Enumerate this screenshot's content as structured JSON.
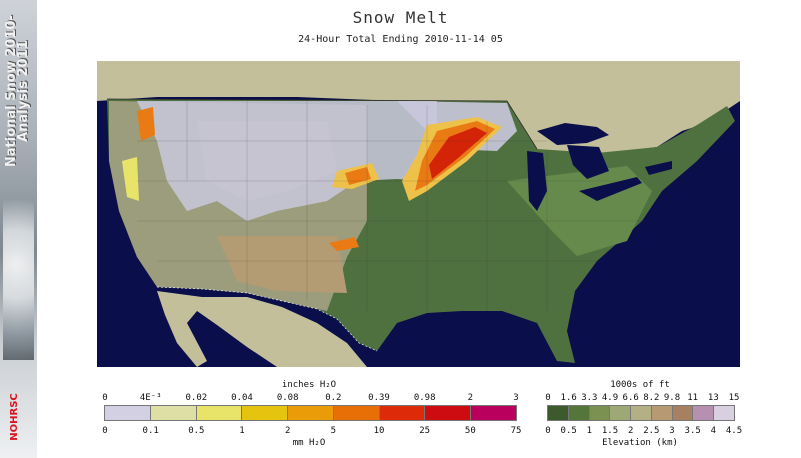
{
  "banner": {
    "text_line1": "National Snow 2010-",
    "text_line2": "Analysis 2011",
    "logo_text": "NOHRSC"
  },
  "header": {
    "title": "Snow Melt",
    "subtitle": "24-Hour Total Ending 2010-11-14 05"
  },
  "melt_legend": {
    "top_label": "inches H₂O",
    "inch_ticks": [
      "0",
      "4E⁻³",
      "0.02",
      "0.04",
      "0.08",
      "0.2",
      "0.39",
      "0.98",
      "2",
      "3"
    ],
    "mm_ticks": [
      "0",
      "0.1",
      "0.5",
      "1",
      "2",
      "5",
      "10",
      "25",
      "50",
      "75"
    ],
    "bottom_label": "mm H₂O",
    "colors": [
      "#d2d0e2",
      "#dedfa4",
      "#e8e46a",
      "#e5c410",
      "#ea9c08",
      "#e86e06",
      "#dd2a08",
      "#cc0c10",
      "#b8005c"
    ]
  },
  "elev_legend": {
    "top_label": "1000s of ft",
    "ft_ticks": [
      "0",
      "1.6",
      "3.3",
      "4.9",
      "6.6",
      "8.2",
      "9.8",
      "11",
      "13",
      "15"
    ],
    "km_ticks": [
      "0",
      "0.5",
      "1",
      "1.5",
      "2",
      "2.5",
      "3",
      "3.5",
      "4",
      "4.5"
    ],
    "bottom_label": "Elevation (km)",
    "colors": [
      "#3d5a2d",
      "#55763a",
      "#7b9152",
      "#9da876",
      "#b3b086",
      "#b69a74",
      "#a78062",
      "#b590b0",
      "#d8cfe0"
    ]
  },
  "map": {
    "colors": {
      "ocean": "#0a0e4a",
      "land_low": "#4f7140",
      "land_high": "#a8a886",
      "foreign_land": "#c2bf9a",
      "snow": "#c9c8dd",
      "melt_light": "#eec24a",
      "melt_mid": "#ea7a14",
      "melt_high": "#d42408"
    }
  }
}
